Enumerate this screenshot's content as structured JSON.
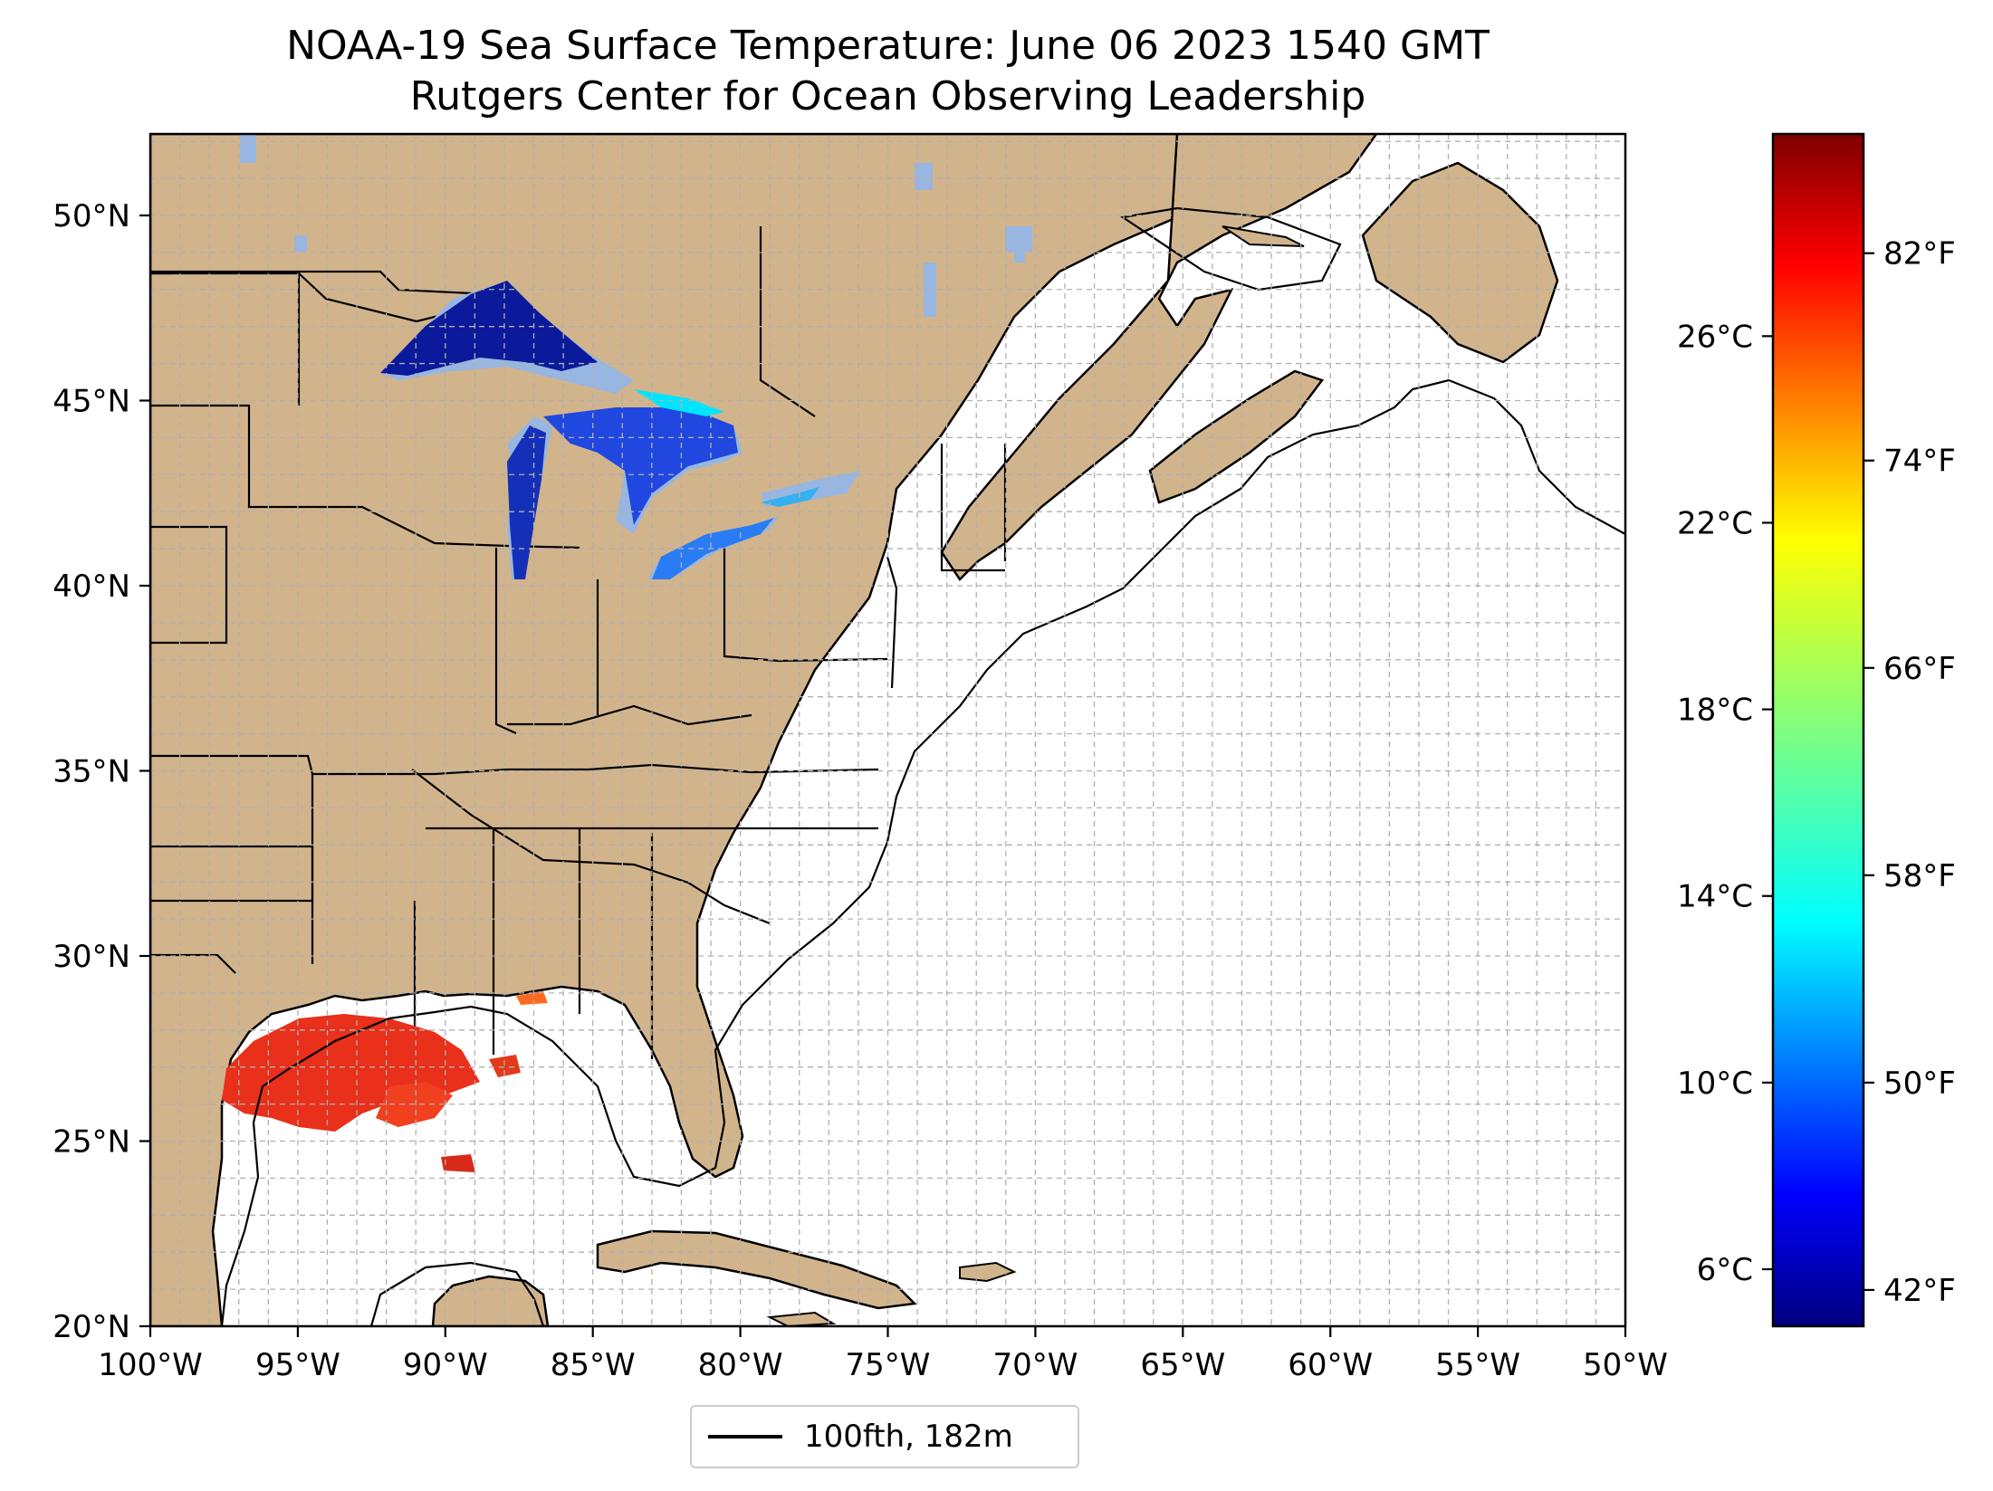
{
  "title": {
    "line1": "NOAA-19 Sea Surface Temperature: June 06 2023 1540 GMT",
    "line2": "Rutgers Center for Ocean Observing Leadership"
  },
  "map": {
    "extent": {
      "lon": [
        -100,
        -50
      ],
      "lat": [
        20,
        52.2
      ]
    },
    "lon_ticks": [
      {
        "value": -100,
        "label": "100°W"
      },
      {
        "value": -95,
        "label": "95°W"
      },
      {
        "value": -90,
        "label": "90°W"
      },
      {
        "value": -85,
        "label": "85°W"
      },
      {
        "value": -80,
        "label": "80°W"
      },
      {
        "value": -75,
        "label": "75°W"
      },
      {
        "value": -70,
        "label": "70°W"
      },
      {
        "value": -65,
        "label": "65°W"
      },
      {
        "value": -60,
        "label": "60°W"
      },
      {
        "value": -55,
        "label": "55°W"
      },
      {
        "value": -50,
        "label": "50°W"
      }
    ],
    "lat_ticks": [
      {
        "value": 20,
        "label": "20°N"
      },
      {
        "value": 25,
        "label": "25°N"
      },
      {
        "value": 30,
        "label": "30°N"
      },
      {
        "value": 35,
        "label": "35°N"
      },
      {
        "value": 40,
        "label": "40°N"
      },
      {
        "value": 45,
        "label": "45°N"
      },
      {
        "value": 50,
        "label": "50°N"
      }
    ],
    "gridlines": "dashed, every 1°",
    "colors": {
      "land": "#d2b48c",
      "lakes": "#97b6e1",
      "ocean": "#ffffff",
      "border": "#000000"
    },
    "sst_patches": [
      {
        "region": "Lake Superior",
        "color": "#0a1a9a"
      },
      {
        "region": "Lake Michigan",
        "color": "#1530b8"
      },
      {
        "region": "Lake Huron",
        "color": "#2048e0"
      },
      {
        "region": "Lake Erie",
        "color": "#2a7cf5"
      },
      {
        "region": "Lake Ontario",
        "color": "#35b0f0"
      },
      {
        "region": "Northern Gulf of Mexico",
        "color": "#e8301a"
      }
    ]
  },
  "colorbar": {
    "cmap": "jet",
    "celsius_ticks": [
      {
        "value": 6,
        "label": "6°C"
      },
      {
        "value": 10,
        "label": "10°C"
      },
      {
        "value": 14,
        "label": "14°C"
      },
      {
        "value": 18,
        "label": "18°C"
      },
      {
        "value": 22,
        "label": "22°C"
      },
      {
        "value": 26,
        "label": "26°C"
      }
    ],
    "fahrenheit_ticks": [
      {
        "value": 42,
        "label": "42°F"
      },
      {
        "value": 50,
        "label": "50°F"
      },
      {
        "value": 58,
        "label": "58°F"
      },
      {
        "value": 66,
        "label": "66°F"
      },
      {
        "value": 74,
        "label": "74°F"
      },
      {
        "value": 82,
        "label": "82°F"
      }
    ],
    "range_f": [
      40.6,
      86.6
    ],
    "colors": [
      "#00007f",
      "#0000ff",
      "#007fff",
      "#00ffff",
      "#7fff7f",
      "#ffff00",
      "#ff7f00",
      "#ff0000",
      "#7f0000"
    ]
  },
  "legend": {
    "label": "100fth, 182m",
    "line_color": "#000000"
  }
}
